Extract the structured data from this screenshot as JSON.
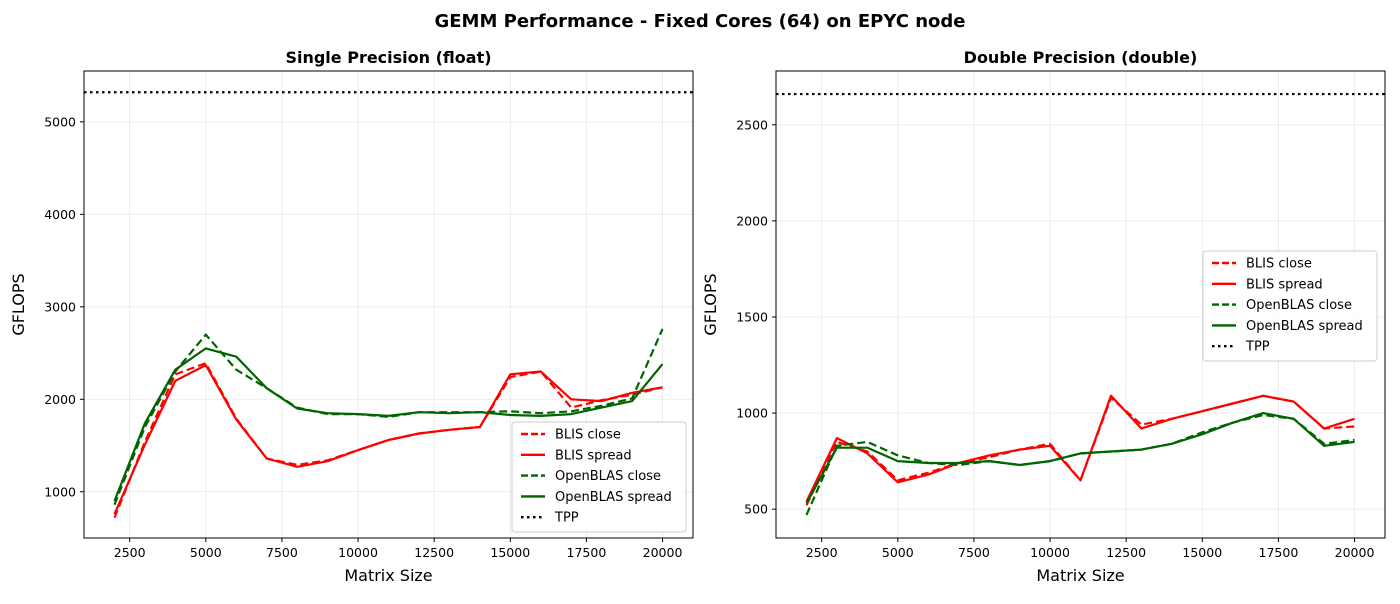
{
  "figure": {
    "title": "GEMM Performance - Fixed Cores (64) on EPYC node"
  },
  "colors": {
    "BLIS": "#ff0000",
    "OpenBLAS": "#006400",
    "TPP": "#000000",
    "grid": "#e8e8e8"
  },
  "chart_data": [
    {
      "type": "line",
      "title": "Single Precision (float)",
      "xlabel": "Matrix Size",
      "ylabel": "GFLOPS",
      "xlim": [
        1000,
        21000
      ],
      "ylim": [
        500,
        5550
      ],
      "xticks": [
        2500,
        5000,
        7500,
        10000,
        12500,
        15000,
        17500,
        20000
      ],
      "yticks": [
        1000,
        2000,
        3000,
        4000,
        5000
      ],
      "grid": true,
      "legend_position": "lower-right",
      "x": [
        2000,
        3000,
        4000,
        5000,
        6000,
        7000,
        8000,
        9000,
        10000,
        11000,
        12000,
        13000,
        14000,
        15000,
        16000,
        17000,
        18000,
        19000,
        20000
      ],
      "series": [
        {
          "name": "BLIS close",
          "style": "dashed",
          "color_key": "BLIS",
          "values": [
            720,
            1540,
            2270,
            2390,
            1790,
            1360,
            1290,
            1340,
            1450,
            1560,
            1630,
            1670,
            1700,
            2240,
            2300,
            1910,
            1990,
            2050,
            2130
          ]
        },
        {
          "name": "BLIS spread",
          "style": "solid",
          "color_key": "BLIS",
          "values": [
            760,
            1510,
            2200,
            2370,
            1780,
            1360,
            1270,
            1330,
            1450,
            1560,
            1630,
            1670,
            1700,
            2270,
            2300,
            2000,
            1980,
            2070,
            2130
          ]
        },
        {
          "name": "OpenBLAS close",
          "style": "dashed",
          "color_key": "OpenBLAS",
          "values": [
            860,
            1700,
            2300,
            2700,
            2320,
            2120,
            1910,
            1840,
            1840,
            1810,
            1860,
            1860,
            1860,
            1870,
            1850,
            1870,
            1930,
            2010,
            2760
          ]
        },
        {
          "name": "OpenBLAS spread",
          "style": "solid",
          "color_key": "OpenBLAS",
          "values": [
            900,
            1740,
            2320,
            2550,
            2460,
            2120,
            1900,
            1850,
            1840,
            1820,
            1860,
            1850,
            1860,
            1830,
            1820,
            1840,
            1910,
            1980,
            2380
          ]
        }
      ],
      "reference_line": {
        "name": "TPP",
        "style": "dotted",
        "color_key": "TPP",
        "y": 5320
      }
    },
    {
      "type": "line",
      "title": "Double Precision (double)",
      "xlabel": "Matrix Size",
      "ylabel": "GFLOPS",
      "xlim": [
        1000,
        21000
      ],
      "ylim": [
        350,
        2780
      ],
      "xticks": [
        2500,
        5000,
        7500,
        10000,
        12500,
        15000,
        17500,
        20000
      ],
      "yticks": [
        500,
        1000,
        1500,
        2000,
        2500
      ],
      "grid": true,
      "legend_position": "center-right",
      "x": [
        2000,
        3000,
        4000,
        5000,
        6000,
        7000,
        8000,
        9000,
        10000,
        11000,
        12000,
        13000,
        14000,
        15000,
        16000,
        17000,
        18000,
        19000,
        20000
      ],
      "series": [
        {
          "name": "BLIS close",
          "style": "dashed",
          "color_key": "BLIS",
          "values": [
            520,
            850,
            800,
            650,
            690,
            740,
            770,
            810,
            840,
            650,
            1080,
            940,
            970,
            1010,
            1050,
            1090,
            1060,
            920,
            930
          ]
        },
        {
          "name": "BLIS spread",
          "style": "solid",
          "color_key": "BLIS",
          "values": [
            540,
            870,
            790,
            640,
            680,
            740,
            780,
            810,
            830,
            650,
            1090,
            920,
            970,
            1010,
            1050,
            1090,
            1060,
            920,
            970
          ]
        },
        {
          "name": "OpenBLAS close",
          "style": "dashed",
          "color_key": "OpenBLAS",
          "values": [
            470,
            830,
            850,
            780,
            740,
            730,
            750,
            730,
            750,
            790,
            800,
            810,
            840,
            900,
            950,
            990,
            970,
            840,
            860
          ]
        },
        {
          "name": "OpenBLAS spread",
          "style": "solid",
          "color_key": "OpenBLAS",
          "values": [
            530,
            820,
            820,
            750,
            740,
            740,
            750,
            730,
            750,
            790,
            800,
            810,
            840,
            890,
            950,
            1000,
            970,
            830,
            850
          ]
        }
      ],
      "reference_line": {
        "name": "TPP",
        "style": "dotted",
        "color_key": "TPP",
        "y": 2660
      }
    }
  ]
}
